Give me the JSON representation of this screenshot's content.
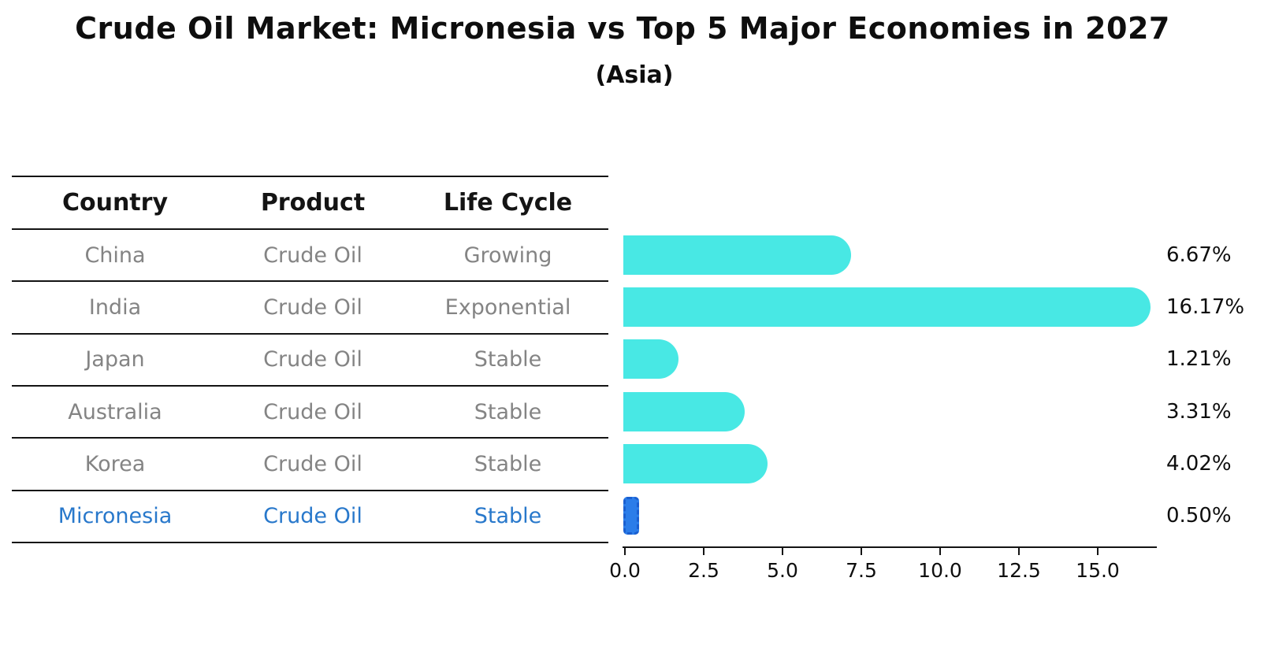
{
  "title": "Crude Oil Market: Micronesia vs Top 5 Major Economies in 2027",
  "subtitle": "(Asia)",
  "colors": {
    "bar": "#48e8e4",
    "highlight_bar": "#2b7de9",
    "highlight_bar_border": "#1a5fd0",
    "highlight_text": "#2878cb",
    "table_body_text": "#848484",
    "heading_text": "#0e0e0e",
    "axis": "#141414",
    "background": "#ffffff"
  },
  "table": {
    "columns": [
      "Country",
      "Product",
      "Life Cycle"
    ],
    "rows": [
      {
        "country": "China",
        "product": "Crude Oil",
        "life_cycle": "Growing",
        "highlight": false
      },
      {
        "country": "India",
        "product": "Crude Oil",
        "life_cycle": "Exponential",
        "highlight": false
      },
      {
        "country": "Japan",
        "product": "Crude Oil",
        "life_cycle": "Stable",
        "highlight": false
      },
      {
        "country": "Australia",
        "product": "Crude Oil",
        "life_cycle": "Stable",
        "highlight": false
      },
      {
        "country": "Korea",
        "product": "Crude Oil",
        "life_cycle": "Stable",
        "highlight": false
      },
      {
        "country": "Micronesia",
        "product": "Crude Oil",
        "life_cycle": "Stable",
        "highlight": true
      }
    ]
  },
  "chart_data": {
    "type": "bar",
    "orientation": "horizontal",
    "title": "Crude Oil Market: Micronesia vs Top 5 Major Economies in 2027",
    "subtitle": "(Asia)",
    "categories": [
      "China",
      "India",
      "Japan",
      "Australia",
      "Korea",
      "Micronesia"
    ],
    "values": [
      6.67,
      16.17,
      1.21,
      3.31,
      4.02,
      0.5
    ],
    "value_labels": [
      "6.67%",
      "16.17%",
      "1.21%",
      "3.31%",
      "4.02%",
      "0.50%"
    ],
    "highlight_index": 5,
    "xlabel": "",
    "ylabel": "",
    "xlim": [
      0,
      16.9
    ],
    "x_ticks": [
      "0.0",
      "2.5",
      "5.0",
      "7.5",
      "10.0",
      "12.5",
      "15.0"
    ],
    "x_tick_values": [
      0.0,
      2.5,
      5.0,
      7.5,
      10.0,
      12.5,
      15.0
    ],
    "grid": false,
    "legend": "none"
  }
}
